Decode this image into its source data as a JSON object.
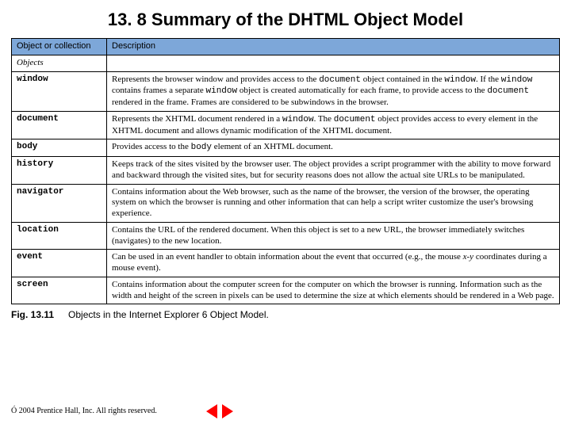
{
  "title": "13. 8  Summary of the DHTML Object Model",
  "columns": {
    "c1": "Object or collection",
    "c2": "Description"
  },
  "section": "Objects",
  "rows": {
    "r0": {
      "name": "window",
      "desc_pre": "Represents the browser window and provides access to the ",
      "c1": "document",
      "t1": " object contained in the ",
      "c2": "window",
      "t2": ". If the ",
      "c3": "window",
      "t3": " contains frames a separate ",
      "c4": "window",
      "t4": " object is created automatically for each frame, to provide access to the ",
      "c5": "document",
      "t5": " rendered in the frame. Frames are considered to be subwindows in the browser."
    },
    "r1": {
      "name": "document",
      "desc_pre": "Represents the XHTML document rendered in a ",
      "c1": "window",
      "t1": ". The ",
      "c2": "document",
      "t2": " object provides access to every element in the XHTML document and allows dynamic modification of the XHTML document."
    },
    "r2": {
      "name": "body",
      "desc_pre": "Provides access to the ",
      "c1": "body",
      "t1": " element of an XHTML document."
    },
    "r3": {
      "name": "history",
      "desc": "Keeps track of the sites visited by the browser user. The object provides a script programmer with the ability to move forward and backward through the visited sites, but for security reasons does not allow the actual site URLs to be manipulated."
    },
    "r4": {
      "name": "navigator",
      "desc": "Contains information about the Web browser, such as the name of the browser, the version of the browser, the operating system on which the browser is running and other information that can help a script writer customize the user's browsing experience."
    },
    "r5": {
      "name": "location",
      "desc": "Contains the URL of the rendered document. When this object is set to a new URL, the browser immediately switches (navigates) to the new location."
    },
    "r6": {
      "name": "event",
      "desc_pre": "Can be used in an event handler to obtain information about the event that occurred (e.g., the mouse ",
      "i1": "x-y",
      "t1": " coordinates during a mouse event)."
    },
    "r7": {
      "name": "screen",
      "desc": "Contains information about the computer screen for the computer on which the browser is running. Information such as the width and height of the screen in pixels can be used to determine the size at which elements should be rendered in a Web page."
    }
  },
  "caption": {
    "num": "Fig. 13.11",
    "text": "Objects in the Internet Explorer 6 Object Model."
  },
  "copyright": "Ó 2004 Prentice Hall, Inc.  All rights reserved."
}
